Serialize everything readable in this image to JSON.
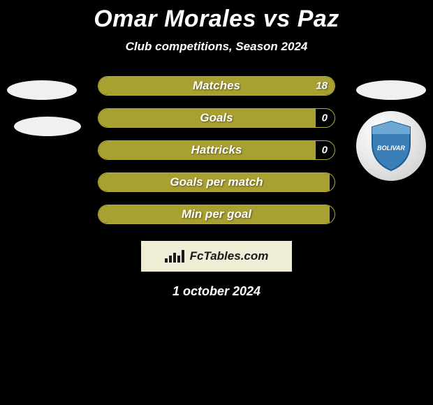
{
  "title": "Omar Morales vs Paz",
  "subtitle": "Club competitions, Season 2024",
  "date": "1 october 2024",
  "footer_brand": "FcTables.com",
  "colors": {
    "background": "#000000",
    "text": "#ffffff",
    "bar_fill": "#a9a032",
    "bar_border": "#b5ab3a",
    "bar_fill_light": "#b8ad3d",
    "footer_bg": "#efedd6",
    "footer_text": "#1a1a1a",
    "ellipse": "#f0f0f0",
    "badge_blue": "#3b7fb8",
    "badge_blue_dark": "#1e5a8e"
  },
  "bars": [
    {
      "label": "Matches",
      "value_right": "18",
      "fill_pct": 100,
      "show_value": true
    },
    {
      "label": "Goals",
      "value_right": "0",
      "fill_pct": 92,
      "show_value": true
    },
    {
      "label": "Hattricks",
      "value_right": "0",
      "fill_pct": 92,
      "show_value": true
    },
    {
      "label": "Goals per match",
      "value_right": "",
      "fill_pct": 98,
      "show_value": false
    },
    {
      "label": "Min per goal",
      "value_right": "",
      "fill_pct": 98,
      "show_value": false
    }
  ],
  "fontsizes": {
    "title": 34,
    "subtitle": 17,
    "bar_label": 17,
    "bar_value": 15,
    "date": 18,
    "footer": 17
  },
  "bar_style": {
    "height": 28,
    "border_radius": 14,
    "gap": 18,
    "track_width": 340
  },
  "badge_text": "BOLIVAR"
}
